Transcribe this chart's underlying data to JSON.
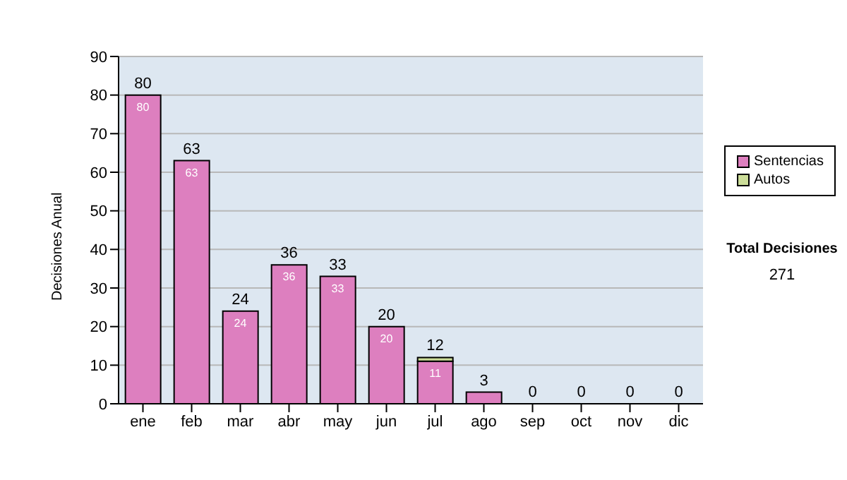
{
  "chart_data": {
    "type": "bar",
    "stacked": true,
    "ylabel": "Decisiones Anual",
    "categories": [
      "ene",
      "feb",
      "mar",
      "abr",
      "may",
      "jun",
      "jul",
      "ago",
      "sep",
      "oct",
      "nov",
      "dic"
    ],
    "series": [
      {
        "name": "Sentencias",
        "color": "#dd7fbf",
        "values": [
          80,
          63,
          24,
          36,
          33,
          20,
          11,
          3,
          0,
          0,
          0,
          0
        ],
        "value_labels": [
          "80",
          "63",
          "24",
          "36",
          "33",
          "20",
          "11",
          null,
          null,
          null,
          null,
          null
        ]
      },
      {
        "name": "Autos",
        "color": "#ccdd99",
        "values": [
          0,
          0,
          0,
          0,
          0,
          0,
          1,
          0,
          0,
          0,
          0,
          0
        ]
      }
    ],
    "totals": [
      "80",
      "63",
      "24",
      "36",
      "33",
      "20",
      "12",
      "3",
      "0",
      "0",
      "0",
      "0"
    ],
    "ylim": [
      0,
      90
    ],
    "yticks": [
      0,
      10,
      20,
      30,
      40,
      50,
      60,
      70,
      80,
      90
    ],
    "grid": "y",
    "legend": "right",
    "annotations": [
      "Total Decisiones",
      "271"
    ]
  }
}
